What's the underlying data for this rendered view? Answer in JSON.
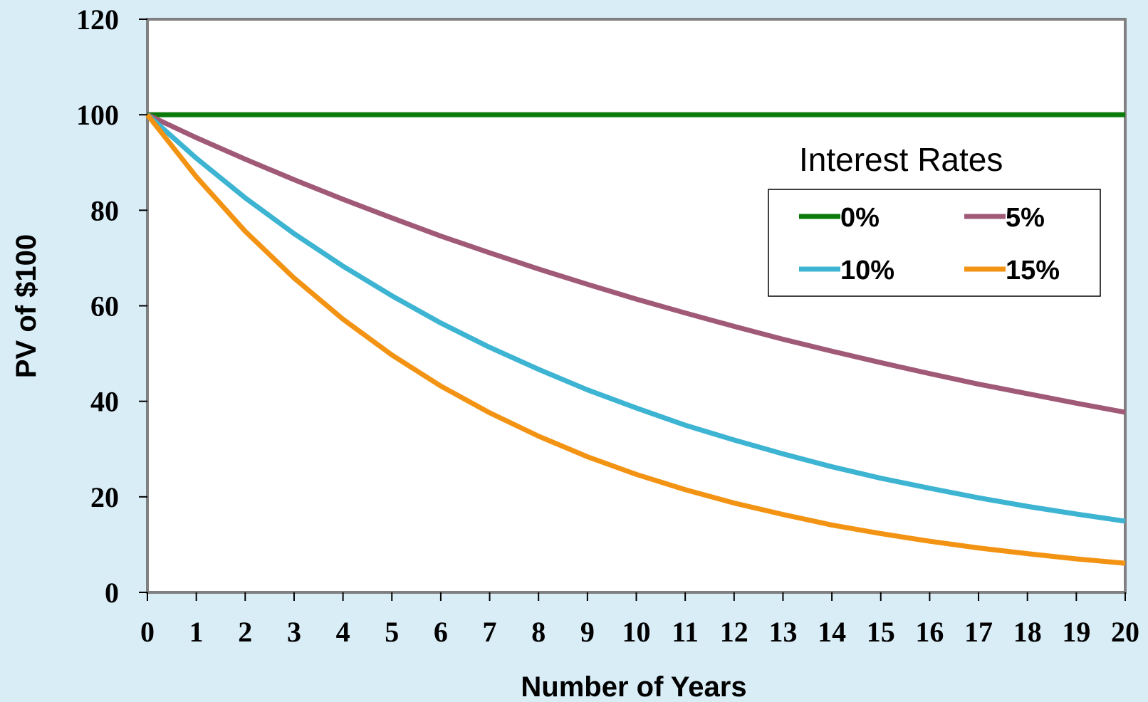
{
  "chart_data": {
    "type": "line",
    "title": "",
    "xlabel": "Number of Years",
    "ylabel": "PV of $100",
    "xlim": [
      0,
      20
    ],
    "ylim": [
      0,
      120
    ],
    "x_ticks": [
      "0",
      "1",
      "2",
      "3",
      "4",
      "5",
      "6",
      "7",
      "8",
      "9",
      "10",
      "11",
      "12",
      "13",
      "14",
      "15",
      "16",
      "17",
      "18",
      "19",
      "20"
    ],
    "y_ticks": [
      "0",
      "20",
      "40",
      "60",
      "80",
      "100",
      "120"
    ],
    "grid": false,
    "legend": {
      "title": "Interest Rates",
      "position": "right",
      "columns": 2
    },
    "x": [
      0,
      1,
      2,
      3,
      4,
      5,
      6,
      7,
      8,
      9,
      10,
      11,
      12,
      13,
      14,
      15,
      16,
      17,
      18,
      19,
      20
    ],
    "series": [
      {
        "name": "0%",
        "color": "#0a7a0a",
        "values": [
          100,
          100,
          100,
          100,
          100,
          100,
          100,
          100,
          100,
          100,
          100,
          100,
          100,
          100,
          100,
          100,
          100,
          100,
          100,
          100,
          100
        ]
      },
      {
        "name": "5%",
        "color": "#a05a78",
        "values": [
          100,
          95.2,
          90.7,
          86.4,
          82.3,
          78.4,
          74.6,
          71.1,
          67.7,
          64.5,
          61.4,
          58.5,
          55.7,
          53.0,
          50.5,
          48.1,
          45.8,
          43.6,
          41.6,
          39.6,
          37.7
        ]
      },
      {
        "name": "10%",
        "color": "#3cb4d2",
        "values": [
          100,
          90.9,
          82.6,
          75.1,
          68.3,
          62.1,
          56.4,
          51.3,
          46.7,
          42.4,
          38.6,
          35.0,
          31.9,
          29.0,
          26.3,
          23.9,
          21.8,
          19.8,
          18.0,
          16.4,
          14.9
        ]
      },
      {
        "name": "15%",
        "color": "#f39313",
        "values": [
          100,
          87.0,
          75.6,
          65.8,
          57.2,
          49.7,
          43.2,
          37.6,
          32.7,
          28.4,
          24.7,
          21.5,
          18.7,
          16.3,
          14.1,
          12.3,
          10.7,
          9.3,
          8.1,
          7.0,
          6.1
        ]
      }
    ]
  }
}
